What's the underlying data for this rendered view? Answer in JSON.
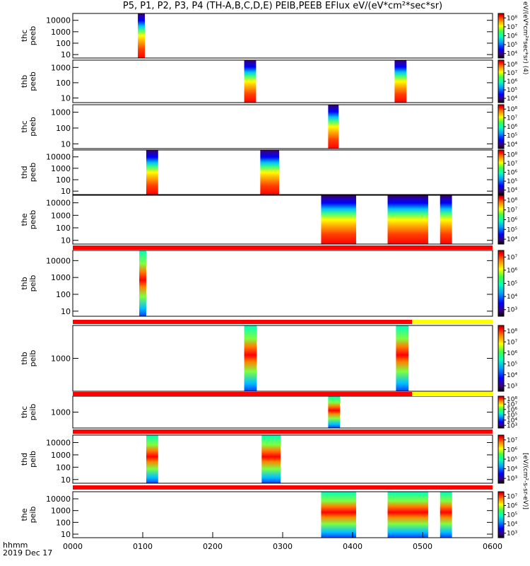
{
  "title": "P5, P1, P2, P3, P4 (TH-A,B,C,D,E) PEIB,PEEB EFlux eV/(eV*cm²*sec*sr)",
  "footer": {
    "line1": "hhmm",
    "line2": "2019 Dec 17"
  },
  "colorbar_title_top": "eV/(eV*cm²*sec*sr) (4)",
  "colorbar_title_bottom": "[eV/(cm²-s-sr-eV)]",
  "chart_data": {
    "type": "heatmap",
    "x": {
      "ticks": [
        "0000",
        "0100",
        "0200",
        "0300",
        "0400",
        "0500",
        "0600"
      ],
      "range_hours": [
        0,
        6
      ]
    },
    "panels": [
      {
        "probe": "thc",
        "instrument": "peeb",
        "yticks": [
          "10",
          "100",
          "1000",
          "10000"
        ],
        "yrange": [
          5,
          40000
        ],
        "colorbar": [
          "10⁴",
          "10⁵",
          "10⁶",
          "10⁷",
          "10⁸"
        ],
        "intervals": [
          [
            0.93,
            1.03
          ]
        ]
      },
      {
        "probe": "thb",
        "instrument": "peeb",
        "yticks": [
          "10",
          "100",
          "1000"
        ],
        "yrange": [
          5,
          3000
        ],
        "colorbar": [
          "10⁴",
          "10⁵",
          "10⁶",
          "10⁷",
          "10⁸"
        ],
        "intervals": [
          [
            2.45,
            2.62
          ],
          [
            4.6,
            4.77
          ]
        ]
      },
      {
        "probe": "thc",
        "instrument": "peeb",
        "yticks": [
          "10",
          "100",
          "1000"
        ],
        "yrange": [
          5,
          3000
        ],
        "colorbar": [
          "10⁴",
          "10⁵",
          "10⁶",
          "10⁷",
          "10⁸"
        ],
        "intervals": [
          [
            3.65,
            3.8
          ]
        ]
      },
      {
        "probe": "thd",
        "instrument": "peeb",
        "yticks": [
          "10",
          "100",
          "1000",
          "10000"
        ],
        "yrange": [
          5,
          40000
        ],
        "colorbar": [
          "10⁴",
          "10⁵",
          "10⁶",
          "10⁷",
          "10⁸"
        ],
        "intervals": [
          [
            1.05,
            1.22
          ],
          [
            2.68,
            2.95
          ]
        ]
      },
      {
        "probe": "the",
        "instrument": "peeb",
        "yticks": [
          "10",
          "100",
          "1000",
          "10000"
        ],
        "yrange": [
          5,
          40000
        ],
        "colorbar": [
          "10⁴",
          "10⁵",
          "10⁶",
          "10⁷",
          "10⁸"
        ],
        "intervals": [
          [
            3.55,
            4.05
          ],
          [
            4.5,
            5.08
          ],
          [
            5.25,
            5.42
          ]
        ]
      },
      {
        "probe": "thb",
        "instrument": "peib",
        "yticks": [
          "10",
          "100",
          "1000",
          "10000"
        ],
        "yrange": [
          5,
          40000
        ],
        "colorbar": [
          "10³",
          "10⁴",
          "10⁵",
          "10⁶",
          "10⁷"
        ],
        "intervals": [
          [
            0.95,
            1.05
          ]
        ]
      },
      {
        "probe": "thb",
        "instrument": "peib",
        "yticks": [
          "1000"
        ],
        "yrange": [
          100,
          10000
        ],
        "colorbar": [
          "10³",
          "10⁴",
          "10⁵",
          "10⁶",
          "10⁷",
          "10⁸"
        ],
        "intervals": [
          [
            2.45,
            2.63
          ],
          [
            4.62,
            4.8
          ]
        ]
      },
      {
        "probe": "thc",
        "instrument": "peib",
        "yticks": [
          "1000"
        ],
        "yrange": [
          100,
          10000
        ],
        "colorbar": [
          "10³",
          "10⁴",
          "10⁵",
          "10⁶",
          "10⁷",
          "10⁸"
        ],
        "intervals": [
          [
            3.65,
            3.82
          ]
        ]
      },
      {
        "probe": "thd",
        "instrument": "peib",
        "yticks": [
          "10",
          "100",
          "1000",
          "10000"
        ],
        "yrange": [
          5,
          40000
        ],
        "colorbar": [
          "10³",
          "10⁴",
          "10⁵",
          "10⁶",
          "10⁷"
        ],
        "intervals": [
          [
            1.05,
            1.22
          ],
          [
            2.7,
            2.97
          ]
        ]
      },
      {
        "probe": "the",
        "instrument": "peib",
        "yticks": [
          "10",
          "100",
          "1000",
          "10000"
        ],
        "yrange": [
          5,
          40000
        ],
        "colorbar": [
          "10³",
          "10⁴",
          "10⁵",
          "10⁶",
          "10⁷"
        ],
        "intervals": [
          [
            3.55,
            4.05
          ],
          [
            4.5,
            5.08
          ],
          [
            5.25,
            5.42
          ]
        ]
      }
    ],
    "mode_bars": [
      {
        "after_panel": 4,
        "segments": [
          {
            "from": 0,
            "to": 6,
            "color": "#ff0000"
          }
        ]
      },
      {
        "after_panel": 5,
        "segments": [
          {
            "from": 0,
            "to": 4.85,
            "color": "#ff0000"
          },
          {
            "from": 4.85,
            "to": 6,
            "color": "#ffff00"
          }
        ]
      },
      {
        "after_panel": 6,
        "segments": [
          {
            "from": 0,
            "to": 4.85,
            "color": "#ff0000"
          },
          {
            "from": 4.85,
            "to": 6,
            "color": "#ffff00"
          }
        ]
      },
      {
        "after_panel": 7,
        "segments": [
          {
            "from": 0,
            "to": 6,
            "color": "#ff0000"
          }
        ]
      },
      {
        "after_panel": 8,
        "segments": [
          {
            "from": 0,
            "to": 6,
            "color": "#ff0000"
          }
        ]
      }
    ],
    "colorscale": [
      "#ffffff",
      "#3a007a",
      "#0000ff",
      "#00a0ff",
      "#00ffc0",
      "#40ff40",
      "#ffff00",
      "#ff8000",
      "#ff0000",
      "#a00000"
    ]
  }
}
